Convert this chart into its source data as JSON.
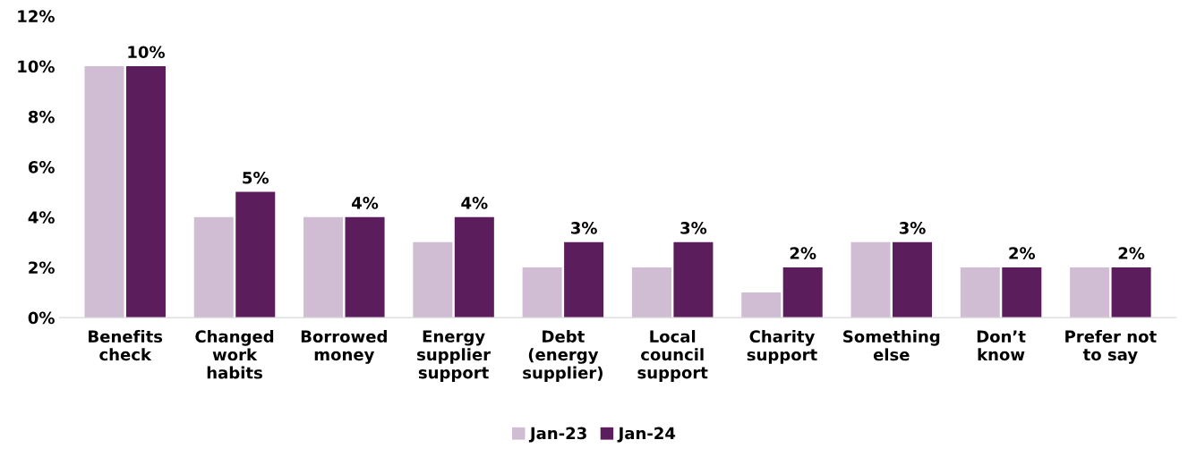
{
  "chart_data": {
    "type": "bar",
    "categories": [
      "Benefits\ncheck",
      "Changed\nwork\nhabits",
      "Borrowed\nmoney",
      "Energy\nsupplier\nsupport",
      "Debt\n(energy\nsupplier)",
      "Local\ncouncil\nsupport",
      "Charity\nsupport",
      "Something\nelse",
      "Don’t\nknow",
      "Prefer not\nto say"
    ],
    "series": [
      {
        "name": "Jan-23",
        "color": "#d0bcd3",
        "values": [
          10,
          4,
          4,
          3,
          2,
          2,
          1,
          3,
          2,
          2
        ]
      },
      {
        "name": "Jan-24",
        "color": "#5c1d5c",
        "values": [
          10,
          5,
          4,
          4,
          3,
          3,
          2,
          3,
          2,
          2
        ],
        "value_labels": [
          "10%",
          "5%",
          "4%",
          "4%",
          "3%",
          "3%",
          "2%",
          "3%",
          "2%",
          "2%"
        ]
      }
    ],
    "ylim": [
      0,
      12
    ],
    "yticks": [
      {
        "value": 0,
        "label": "0%"
      },
      {
        "value": 2,
        "label": "2%"
      },
      {
        "value": 4,
        "label": "4%"
      },
      {
        "value": 6,
        "label": "6%"
      },
      {
        "value": 8,
        "label": "8%"
      },
      {
        "value": 10,
        "label": "10%"
      },
      {
        "value": 12,
        "label": "12%"
      }
    ],
    "grid": false,
    "legend": "bottom"
  }
}
